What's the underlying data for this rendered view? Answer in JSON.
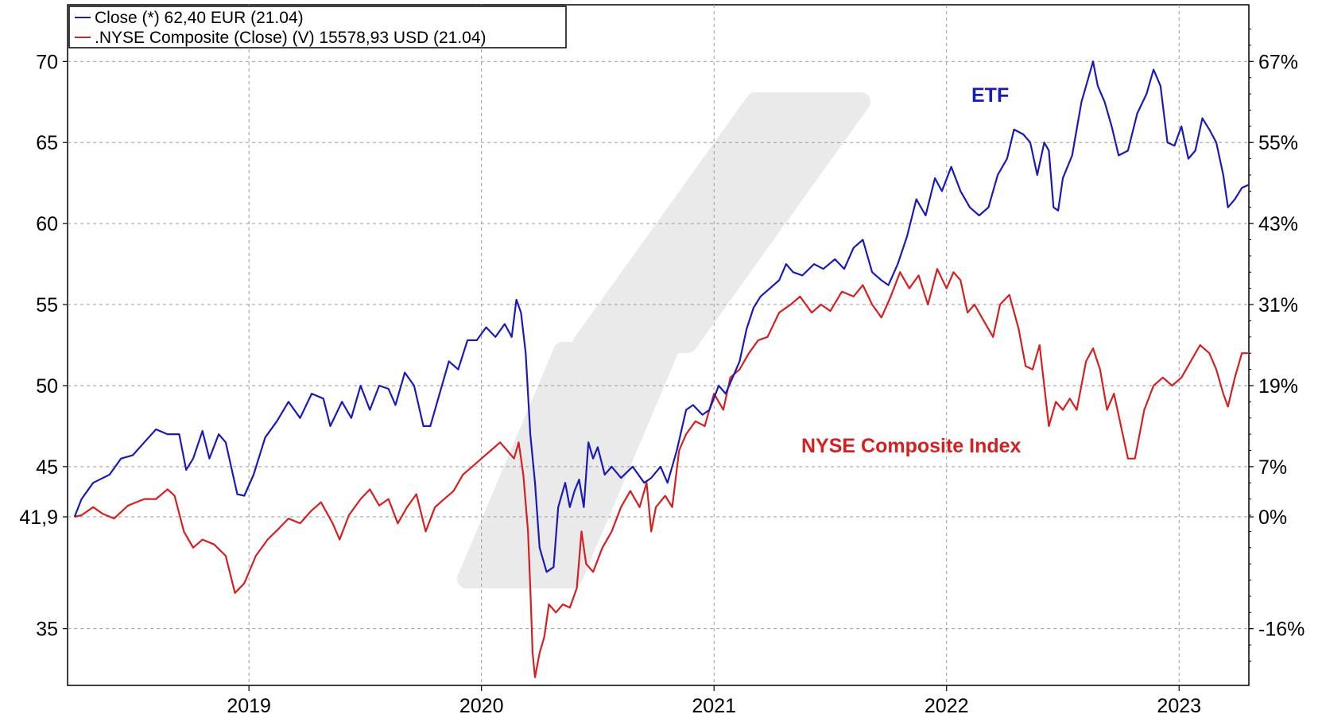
{
  "chart_data": {
    "type": "line",
    "x_range": [
      2018.22,
      2023.3
    ],
    "x_ticks": [
      2019,
      2020,
      2021,
      2022,
      2023
    ],
    "x_tick_labels": [
      "2019",
      "2020",
      "2021",
      "2022",
      "2023"
    ],
    "y_left": {
      "range": [
        31.5,
        73.5
      ],
      "ticks": [
        35,
        41.9,
        45,
        50,
        55,
        60,
        65,
        70
      ],
      "tick_labels": [
        "35",
        "41,9",
        "45",
        "50",
        "55",
        "60",
        "65",
        "70"
      ]
    },
    "y_right": {
      "ticks": [
        -16,
        0,
        7,
        19,
        31,
        43,
        55,
        67
      ],
      "tick_labels": [
        "-16%",
        "0%",
        "7%",
        "19%",
        "31%",
        "43%",
        "55%",
        "67%"
      ]
    },
    "grid": true,
    "legend": {
      "position": "top-left",
      "entries": [
        {
          "label": "Close (*) 62,40 EUR (21.04)",
          "color": "#1a1ab8"
        },
        {
          "label": ".NYSE Composite (Close) (V) 15578,93 USD (21.04)",
          "color": "#d42020"
        }
      ]
    },
    "annotations": [
      {
        "text": "ETF",
        "color": "#1a1ab8"
      },
      {
        "text": "NYSE Composite Index",
        "color": "#d42020"
      }
    ],
    "series": [
      {
        "name": "ETF",
        "color": "#1a1ab8",
        "points": [
          [
            2018.25,
            41.9
          ],
          [
            2018.28,
            43.0
          ],
          [
            2018.33,
            44.0
          ],
          [
            2018.4,
            44.5
          ],
          [
            2018.45,
            45.5
          ],
          [
            2018.5,
            45.7
          ],
          [
            2018.55,
            46.5
          ],
          [
            2018.6,
            47.3
          ],
          [
            2018.65,
            47.0
          ],
          [
            2018.7,
            47.0
          ],
          [
            2018.73,
            44.8
          ],
          [
            2018.76,
            45.5
          ],
          [
            2018.8,
            47.2
          ],
          [
            2018.83,
            45.5
          ],
          [
            2018.87,
            47.0
          ],
          [
            2018.9,
            46.5
          ],
          [
            2018.95,
            43.3
          ],
          [
            2018.98,
            43.2
          ],
          [
            2019.02,
            44.5
          ],
          [
            2019.07,
            46.8
          ],
          [
            2019.12,
            47.8
          ],
          [
            2019.17,
            49.0
          ],
          [
            2019.22,
            48.0
          ],
          [
            2019.27,
            49.5
          ],
          [
            2019.32,
            49.2
          ],
          [
            2019.35,
            47.5
          ],
          [
            2019.4,
            49.0
          ],
          [
            2019.44,
            48.0
          ],
          [
            2019.48,
            50.0
          ],
          [
            2019.52,
            48.5
          ],
          [
            2019.56,
            50.0
          ],
          [
            2019.6,
            49.8
          ],
          [
            2019.63,
            48.8
          ],
          [
            2019.67,
            50.8
          ],
          [
            2019.71,
            50.0
          ],
          [
            2019.75,
            47.5
          ],
          [
            2019.78,
            47.5
          ],
          [
            2019.82,
            49.5
          ],
          [
            2019.86,
            51.5
          ],
          [
            2019.9,
            51.0
          ],
          [
            2019.94,
            52.8
          ],
          [
            2019.98,
            52.8
          ],
          [
            2020.02,
            53.6
          ],
          [
            2020.06,
            53.0
          ],
          [
            2020.1,
            53.8
          ],
          [
            2020.13,
            53.0
          ],
          [
            2020.15,
            55.3
          ],
          [
            2020.17,
            54.5
          ],
          [
            2020.19,
            52.0
          ],
          [
            2020.21,
            47.0
          ],
          [
            2020.23,
            44.0
          ],
          [
            2020.25,
            40.0
          ],
          [
            2020.28,
            38.5
          ],
          [
            2020.31,
            38.8
          ],
          [
            2020.33,
            42.5
          ],
          [
            2020.36,
            44.0
          ],
          [
            2020.38,
            42.5
          ],
          [
            2020.4,
            43.5
          ],
          [
            2020.42,
            44.2
          ],
          [
            2020.44,
            42.5
          ],
          [
            2020.46,
            46.5
          ],
          [
            2020.48,
            45.5
          ],
          [
            2020.5,
            46.2
          ],
          [
            2020.53,
            44.5
          ],
          [
            2020.56,
            45.0
          ],
          [
            2020.6,
            44.3
          ],
          [
            2020.65,
            45.0
          ],
          [
            2020.7,
            44.0
          ],
          [
            2020.73,
            44.3
          ],
          [
            2020.77,
            45.0
          ],
          [
            2020.8,
            44.0
          ],
          [
            2020.84,
            46.0
          ],
          [
            2020.88,
            48.5
          ],
          [
            2020.91,
            48.8
          ],
          [
            2020.95,
            48.2
          ],
          [
            2020.98,
            48.5
          ],
          [
            2021.02,
            50.0
          ],
          [
            2021.05,
            49.5
          ],
          [
            2021.08,
            50.5
          ],
          [
            2021.11,
            51.5
          ],
          [
            2021.14,
            53.5
          ],
          [
            2021.17,
            54.8
          ],
          [
            2021.2,
            55.5
          ],
          [
            2021.24,
            56.0
          ],
          [
            2021.28,
            56.5
          ],
          [
            2021.31,
            57.5
          ],
          [
            2021.34,
            57.0
          ],
          [
            2021.38,
            56.8
          ],
          [
            2021.43,
            57.5
          ],
          [
            2021.47,
            57.2
          ],
          [
            2021.52,
            57.8
          ],
          [
            2021.56,
            57.2
          ],
          [
            2021.6,
            58.5
          ],
          [
            2021.64,
            59.0
          ],
          [
            2021.68,
            57.0
          ],
          [
            2021.72,
            56.5
          ],
          [
            2021.75,
            56.2
          ],
          [
            2021.79,
            57.5
          ],
          [
            2021.83,
            59.2
          ],
          [
            2021.87,
            61.5
          ],
          [
            2021.91,
            60.5
          ],
          [
            2021.95,
            62.8
          ],
          [
            2021.98,
            62.0
          ],
          [
            2022.02,
            63.5
          ],
          [
            2022.06,
            62.0
          ],
          [
            2022.1,
            61.0
          ],
          [
            2022.14,
            60.5
          ],
          [
            2022.18,
            61.0
          ],
          [
            2022.22,
            63.0
          ],
          [
            2022.26,
            64.0
          ],
          [
            2022.29,
            65.8
          ],
          [
            2022.33,
            65.5
          ],
          [
            2022.36,
            65.0
          ],
          [
            2022.39,
            63.0
          ],
          [
            2022.42,
            65.0
          ],
          [
            2022.44,
            64.5
          ],
          [
            2022.46,
            61.0
          ],
          [
            2022.48,
            60.8
          ],
          [
            2022.5,
            62.8
          ],
          [
            2022.54,
            64.2
          ],
          [
            2022.58,
            67.5
          ],
          [
            2022.61,
            69.0
          ],
          [
            2022.63,
            70.0
          ],
          [
            2022.65,
            68.5
          ],
          [
            2022.68,
            67.5
          ],
          [
            2022.71,
            66.0
          ],
          [
            2022.74,
            64.2
          ],
          [
            2022.78,
            64.5
          ],
          [
            2022.82,
            66.8
          ],
          [
            2022.86,
            68.0
          ],
          [
            2022.89,
            69.5
          ],
          [
            2022.92,
            68.5
          ],
          [
            2022.95,
            65.0
          ],
          [
            2022.98,
            64.8
          ],
          [
            2023.01,
            66.0
          ],
          [
            2023.04,
            64.0
          ],
          [
            2023.07,
            64.5
          ],
          [
            2023.1,
            66.5
          ],
          [
            2023.13,
            65.8
          ],
          [
            2023.16,
            65.0
          ],
          [
            2023.19,
            63.0
          ],
          [
            2023.21,
            61.0
          ],
          [
            2023.24,
            61.5
          ],
          [
            2023.27,
            62.2
          ],
          [
            2023.3,
            62.4
          ]
        ]
      },
      {
        "name": ".NYSE Composite",
        "color": "#d42020",
        "points": [
          [
            2018.25,
            41.9
          ],
          [
            2018.28,
            42.0
          ],
          [
            2018.33,
            42.5
          ],
          [
            2018.37,
            42.1
          ],
          [
            2018.42,
            41.8
          ],
          [
            2018.48,
            42.6
          ],
          [
            2018.55,
            43.0
          ],
          [
            2018.6,
            43.0
          ],
          [
            2018.65,
            43.6
          ],
          [
            2018.68,
            43.2
          ],
          [
            2018.72,
            41.0
          ],
          [
            2018.76,
            40.0
          ],
          [
            2018.8,
            40.5
          ],
          [
            2018.85,
            40.2
          ],
          [
            2018.9,
            39.5
          ],
          [
            2018.94,
            37.2
          ],
          [
            2018.98,
            37.8
          ],
          [
            2019.03,
            39.5
          ],
          [
            2019.08,
            40.5
          ],
          [
            2019.13,
            41.2
          ],
          [
            2019.17,
            41.8
          ],
          [
            2019.22,
            41.5
          ],
          [
            2019.27,
            42.3
          ],
          [
            2019.31,
            42.8
          ],
          [
            2019.36,
            41.5
          ],
          [
            2019.39,
            40.5
          ],
          [
            2019.43,
            42.0
          ],
          [
            2019.48,
            43.0
          ],
          [
            2019.52,
            43.6
          ],
          [
            2019.56,
            42.6
          ],
          [
            2019.6,
            43.0
          ],
          [
            2019.64,
            41.5
          ],
          [
            2019.68,
            42.5
          ],
          [
            2019.72,
            43.3
          ],
          [
            2019.76,
            41.0
          ],
          [
            2019.8,
            42.5
          ],
          [
            2019.84,
            43.0
          ],
          [
            2019.88,
            43.5
          ],
          [
            2019.92,
            44.5
          ],
          [
            2019.96,
            45.0
          ],
          [
            2020.0,
            45.5
          ],
          [
            2020.04,
            46.0
          ],
          [
            2020.08,
            46.5
          ],
          [
            2020.11,
            46.0
          ],
          [
            2020.14,
            45.5
          ],
          [
            2020.16,
            46.5
          ],
          [
            2020.18,
            44.5
          ],
          [
            2020.2,
            41.0
          ],
          [
            2020.21,
            37.5
          ],
          [
            2020.22,
            33.5
          ],
          [
            2020.23,
            32.0
          ],
          [
            2020.25,
            33.5
          ],
          [
            2020.27,
            34.5
          ],
          [
            2020.29,
            36.5
          ],
          [
            2020.32,
            36.0
          ],
          [
            2020.35,
            36.5
          ],
          [
            2020.38,
            36.3
          ],
          [
            2020.41,
            37.5
          ],
          [
            2020.43,
            41.0
          ],
          [
            2020.45,
            39.0
          ],
          [
            2020.48,
            38.5
          ],
          [
            2020.52,
            40.0
          ],
          [
            2020.56,
            41.0
          ],
          [
            2020.6,
            42.5
          ],
          [
            2020.64,
            43.5
          ],
          [
            2020.68,
            42.5
          ],
          [
            2020.71,
            44.0
          ],
          [
            2020.73,
            41.0
          ],
          [
            2020.75,
            42.5
          ],
          [
            2020.79,
            43.2
          ],
          [
            2020.82,
            42.5
          ],
          [
            2020.85,
            46.0
          ],
          [
            2020.88,
            47.0
          ],
          [
            2020.92,
            47.8
          ],
          [
            2020.96,
            47.5
          ],
          [
            2021.0,
            49.5
          ],
          [
            2021.04,
            48.5
          ],
          [
            2021.07,
            50.5
          ],
          [
            2021.11,
            51.0
          ],
          [
            2021.15,
            52.0
          ],
          [
            2021.19,
            52.8
          ],
          [
            2021.23,
            53.0
          ],
          [
            2021.28,
            54.5
          ],
          [
            2021.33,
            55.0
          ],
          [
            2021.37,
            55.5
          ],
          [
            2021.42,
            54.5
          ],
          [
            2021.46,
            55.0
          ],
          [
            2021.5,
            54.6
          ],
          [
            2021.55,
            55.8
          ],
          [
            2021.6,
            55.5
          ],
          [
            2021.64,
            56.2
          ],
          [
            2021.68,
            55.0
          ],
          [
            2021.72,
            54.2
          ],
          [
            2021.76,
            55.5
          ],
          [
            2021.8,
            57.0
          ],
          [
            2021.84,
            56.0
          ],
          [
            2021.88,
            56.8
          ],
          [
            2021.92,
            55.0
          ],
          [
            2021.96,
            57.2
          ],
          [
            2022.0,
            56.0
          ],
          [
            2022.03,
            57.0
          ],
          [
            2022.06,
            56.5
          ],
          [
            2022.09,
            54.5
          ],
          [
            2022.12,
            55.0
          ],
          [
            2022.16,
            54.0
          ],
          [
            2022.2,
            53.0
          ],
          [
            2022.23,
            55.0
          ],
          [
            2022.27,
            55.6
          ],
          [
            2022.31,
            53.5
          ],
          [
            2022.34,
            51.2
          ],
          [
            2022.37,
            51.0
          ],
          [
            2022.4,
            52.5
          ],
          [
            2022.42,
            50.0
          ],
          [
            2022.44,
            47.5
          ],
          [
            2022.47,
            49.0
          ],
          [
            2022.5,
            48.5
          ],
          [
            2022.53,
            49.2
          ],
          [
            2022.56,
            48.5
          ],
          [
            2022.6,
            51.5
          ],
          [
            2022.63,
            52.3
          ],
          [
            2022.66,
            51.0
          ],
          [
            2022.69,
            48.5
          ],
          [
            2022.72,
            49.5
          ],
          [
            2022.75,
            47.5
          ],
          [
            2022.78,
            45.5
          ],
          [
            2022.81,
            45.5
          ],
          [
            2022.85,
            48.5
          ],
          [
            2022.89,
            50.0
          ],
          [
            2022.93,
            50.5
          ],
          [
            2022.97,
            50.0
          ],
          [
            2023.01,
            50.5
          ],
          [
            2023.05,
            51.5
          ],
          [
            2023.09,
            52.5
          ],
          [
            2023.13,
            52.0
          ],
          [
            2023.16,
            51.0
          ],
          [
            2023.19,
            49.5
          ],
          [
            2023.21,
            48.7
          ],
          [
            2023.24,
            50.5
          ],
          [
            2023.27,
            52.0
          ],
          [
            2023.3,
            52.0
          ]
        ]
      }
    ]
  }
}
